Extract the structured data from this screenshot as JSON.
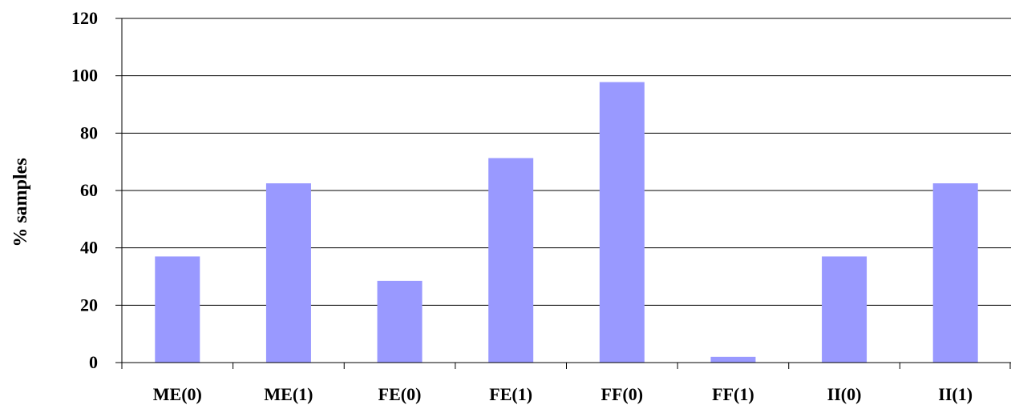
{
  "chart_data": {
    "type": "bar",
    "title": "",
    "xlabel": "",
    "ylabel": "% samples",
    "categories": [
      "ME(0)",
      "ME(1)",
      "FE(0)",
      "FE(1)",
      "FF(0)",
      "FF(1)",
      "II(0)",
      "II(1)"
    ],
    "values": [
      37,
      62.5,
      28.5,
      71.3,
      97.8,
      2,
      37,
      62.5
    ],
    "ylim": [
      0,
      120
    ],
    "yticks": [
      "0",
      "20",
      "40",
      "60",
      "80",
      "100",
      "120"
    ],
    "grid": true,
    "legend": "none",
    "colors": {
      "bar": "#9999ff",
      "grid": "#000000",
      "axis": "#000000"
    }
  }
}
